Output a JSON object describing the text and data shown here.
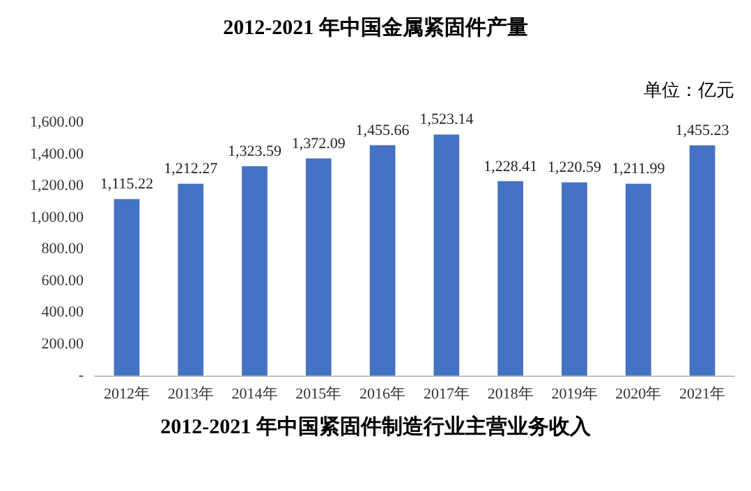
{
  "chart_data": {
    "type": "bar",
    "title": "2012-2021 年中国金属紧固件产量",
    "annotations": [
      "单位：亿元",
      "2012-2021 年中国紧固件制造行业主营业务收入"
    ],
    "categories": [
      "2012年",
      "2013年",
      "2014年",
      "2015年",
      "2016年",
      "2017年",
      "2018年",
      "2019年",
      "2020年",
      "2021年"
    ],
    "values": [
      1115.22,
      1212.27,
      1323.59,
      1372.09,
      1455.66,
      1523.14,
      1228.41,
      1220.59,
      1211.99,
      1455.23
    ],
    "color": "#4472c4",
    "ylim": [
      0,
      1600
    ],
    "yticks": [
      {
        "value": 0,
        "label": "-"
      },
      {
        "value": 200,
        "label": "200.00"
      },
      {
        "value": 400,
        "label": "400.00"
      },
      {
        "value": 600,
        "label": "600.00"
      },
      {
        "value": 800,
        "label": "800.00"
      },
      {
        "value": 1000,
        "label": "1,000.00"
      },
      {
        "value": 1200,
        "label": "1,200.00"
      },
      {
        "value": 1400,
        "label": "1,400.00"
      },
      {
        "value": 1600,
        "label": "1,600.00"
      }
    ],
    "value_labels": [
      "1,115.22",
      "1,212.27",
      "1,323.59",
      "1,372.09",
      "1,455.66",
      "1,523.14",
      "1,228.41",
      "1,220.59",
      "1,211.99",
      "1,455.23"
    ],
    "grid": false
  }
}
